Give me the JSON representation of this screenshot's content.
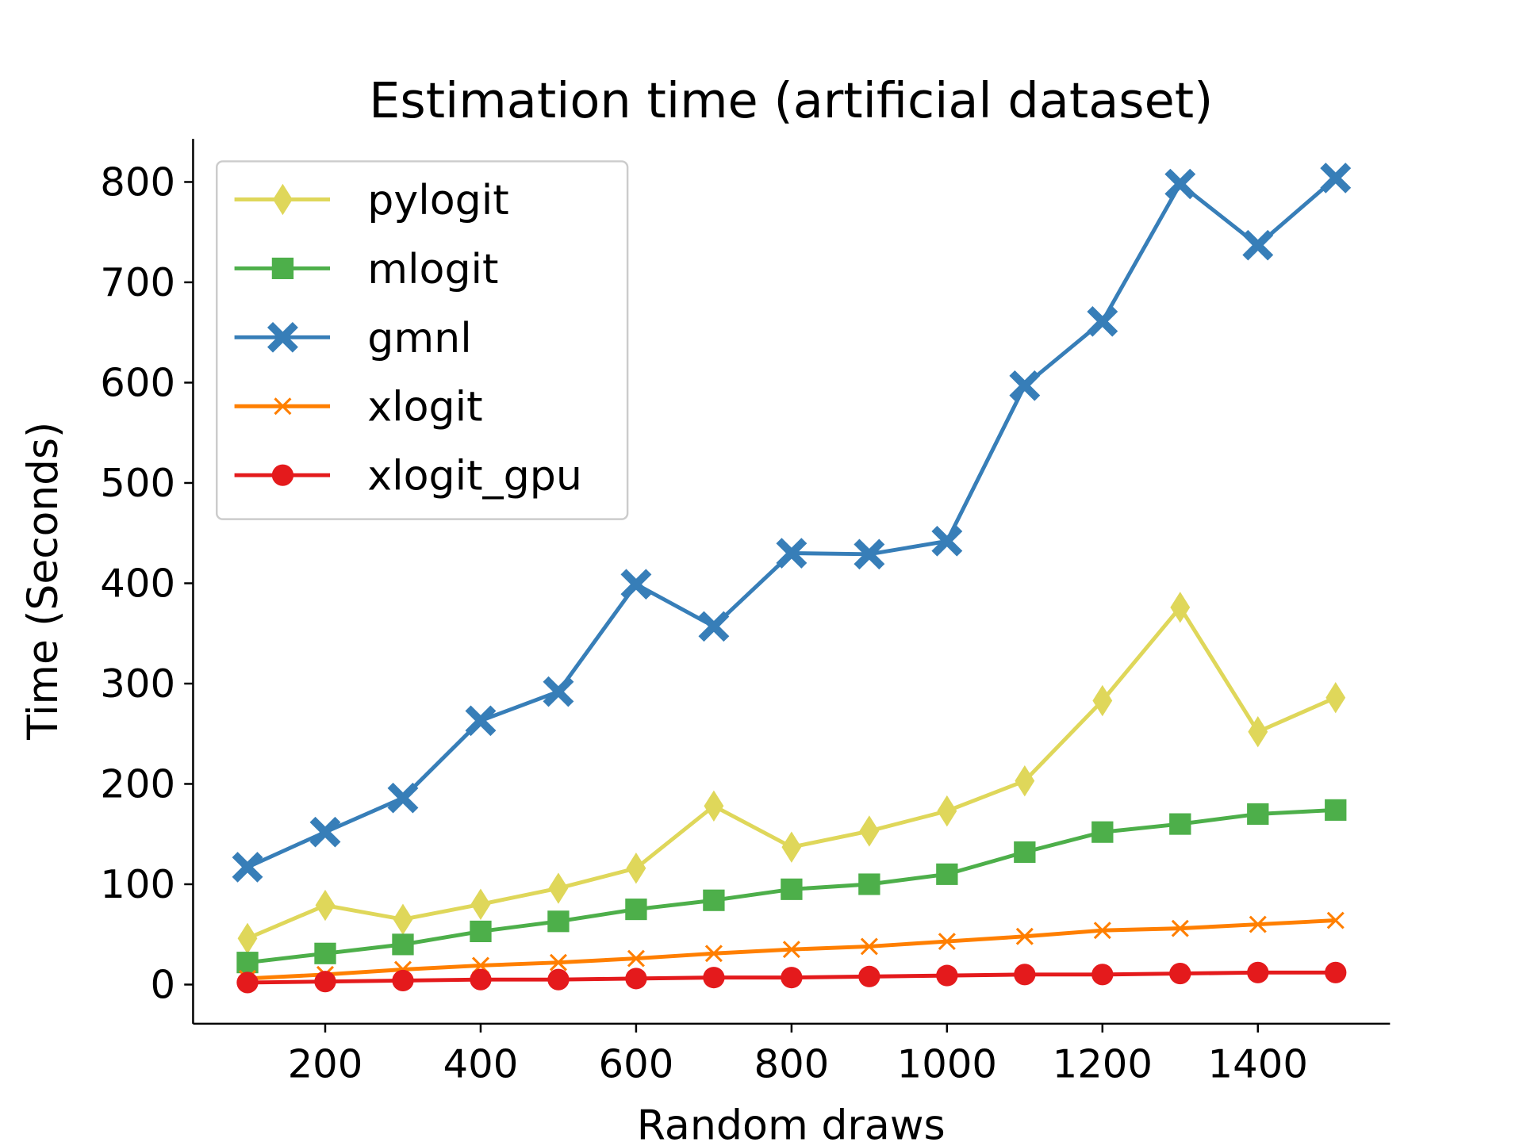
{
  "chart_data": {
    "type": "line",
    "title": "Estimation time (artificial dataset)",
    "xlabel": "Random draws",
    "ylabel": "Time (Seconds)",
    "xlim": [
      30,
      1570
    ],
    "ylim": [
      -39,
      843
    ],
    "xticks": [
      200,
      400,
      600,
      800,
      1000,
      1200,
      1400
    ],
    "yticks": [
      0,
      100,
      200,
      300,
      400,
      500,
      600,
      700,
      800
    ],
    "grid": false,
    "legend_position": "top-left",
    "x": [
      100,
      200,
      300,
      400,
      500,
      600,
      700,
      800,
      900,
      1000,
      1100,
      1200,
      1300,
      1400,
      1500
    ],
    "series": [
      {
        "name": "pylogit",
        "color": "#dfd75a",
        "marker": "diamond",
        "values": [
          46,
          79,
          65,
          80,
          96,
          116,
          178,
          137,
          153,
          173,
          203,
          283,
          376,
          252,
          286
        ]
      },
      {
        "name": "mlogit",
        "color": "#4daf4a",
        "marker": "square",
        "values": [
          22,
          31,
          40,
          53,
          63,
          75,
          84,
          95,
          100,
          110,
          132,
          152,
          160,
          170,
          174
        ]
      },
      {
        "name": "gmnl",
        "color": "#377eb8",
        "marker": "x-filled",
        "values": [
          117,
          152,
          186,
          263,
          292,
          399,
          357,
          430,
          429,
          442,
          597,
          661,
          798,
          737,
          804
        ]
      },
      {
        "name": "xlogit",
        "color": "#ff7f00",
        "marker": "x",
        "values": [
          6,
          10,
          15,
          19,
          22,
          26,
          31,
          35,
          38,
          43,
          48,
          54,
          56,
          60,
          64
        ]
      },
      {
        "name": "xlogit_gpu",
        "color": "#e41a1c",
        "marker": "circle",
        "values": [
          2,
          3,
          4,
          5,
          5,
          6,
          7,
          7,
          8,
          9,
          10,
          10,
          11,
          12,
          12
        ]
      }
    ]
  }
}
